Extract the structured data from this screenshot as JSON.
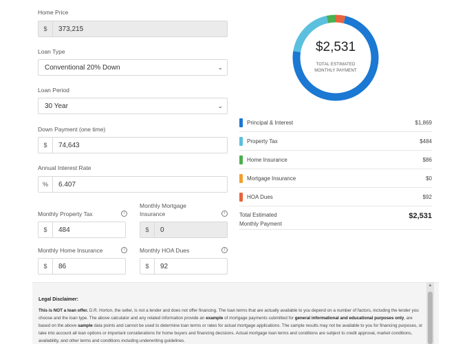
{
  "form": {
    "home_price": {
      "label": "Home Price",
      "prefix": "$",
      "value": "373,215"
    },
    "loan_type": {
      "label": "Loan Type",
      "value": "Conventional 20% Down"
    },
    "loan_period": {
      "label": "Loan Period",
      "value": "30 Year"
    },
    "down_payment": {
      "label": "Down Payment (one time)",
      "prefix": "$",
      "value": "74,643"
    },
    "interest_rate": {
      "label": "Annual Interest Rate",
      "prefix": "%",
      "value": "6.407"
    },
    "property_tax": {
      "label": "Monthly Property Tax",
      "prefix": "$",
      "value": "484"
    },
    "mortgage_insurance": {
      "label_line1": "Monthly Mortgage",
      "label_line2": "Insurance",
      "prefix": "$",
      "value": "0"
    },
    "home_insurance": {
      "label": "Monthly Home Insurance",
      "prefix": "$",
      "value": "86"
    },
    "hoa_dues": {
      "label": "Monthly HOA Dues",
      "prefix": "$",
      "value": "92"
    },
    "info_glyph": "i"
  },
  "summary": {
    "total_amount": "$2,531",
    "caption_line1": "TOTAL ESTIMATED",
    "caption_line2": "MONTHLY PAYMENT",
    "breakdown": [
      {
        "label": "Principal & Interest",
        "amount": "$1,869",
        "value": 1869,
        "color": "#1b78d3"
      },
      {
        "label": "Property Tax",
        "amount": "$484",
        "value": 484,
        "color": "#5bc0de"
      },
      {
        "label": "Home Insurance",
        "amount": "$86",
        "value": 86,
        "color": "#4caf50"
      },
      {
        "label": "Mortgage Insurance",
        "amount": "$0",
        "value": 0,
        "color": "#f0a030"
      },
      {
        "label": "HOA Dues",
        "amount": "$92",
        "value": 92,
        "color": "#e8643c"
      }
    ],
    "total_label_line1": "Total Estimated",
    "total_label_line2": "Monthly Payment",
    "total_value": "$2,531"
  },
  "disclaimer": {
    "title": "Legal Disclaimer:",
    "p1_bold": "This is NOT a loan offer.",
    "p1_a": " D.R. Horton, the seller, is not a lender and does not offer financing. The loan terms that are actually available to you depend on a number of factors, including the lender you choose and the loan type. The above calculator and any related information provide an ",
    "p1_example": "example",
    "p1_b": " of mortgage payments submitted for ",
    "p1_general": "general informational and educational purposes only",
    "p1_c": ", are based on the above ",
    "p1_sample": "sample",
    "p1_d": " data points and cannot be used to determine loan terms or rates for actual mortgage applications. The sample results may not be available to you for financing purposes, or take into account all loan options or important considerations for home buyers and financing decisions. Actual mortgage loan terms and conditions are subject to credit approval, market conditions, availability, and other terms and conditions including underwriting guidelines."
  }
}
